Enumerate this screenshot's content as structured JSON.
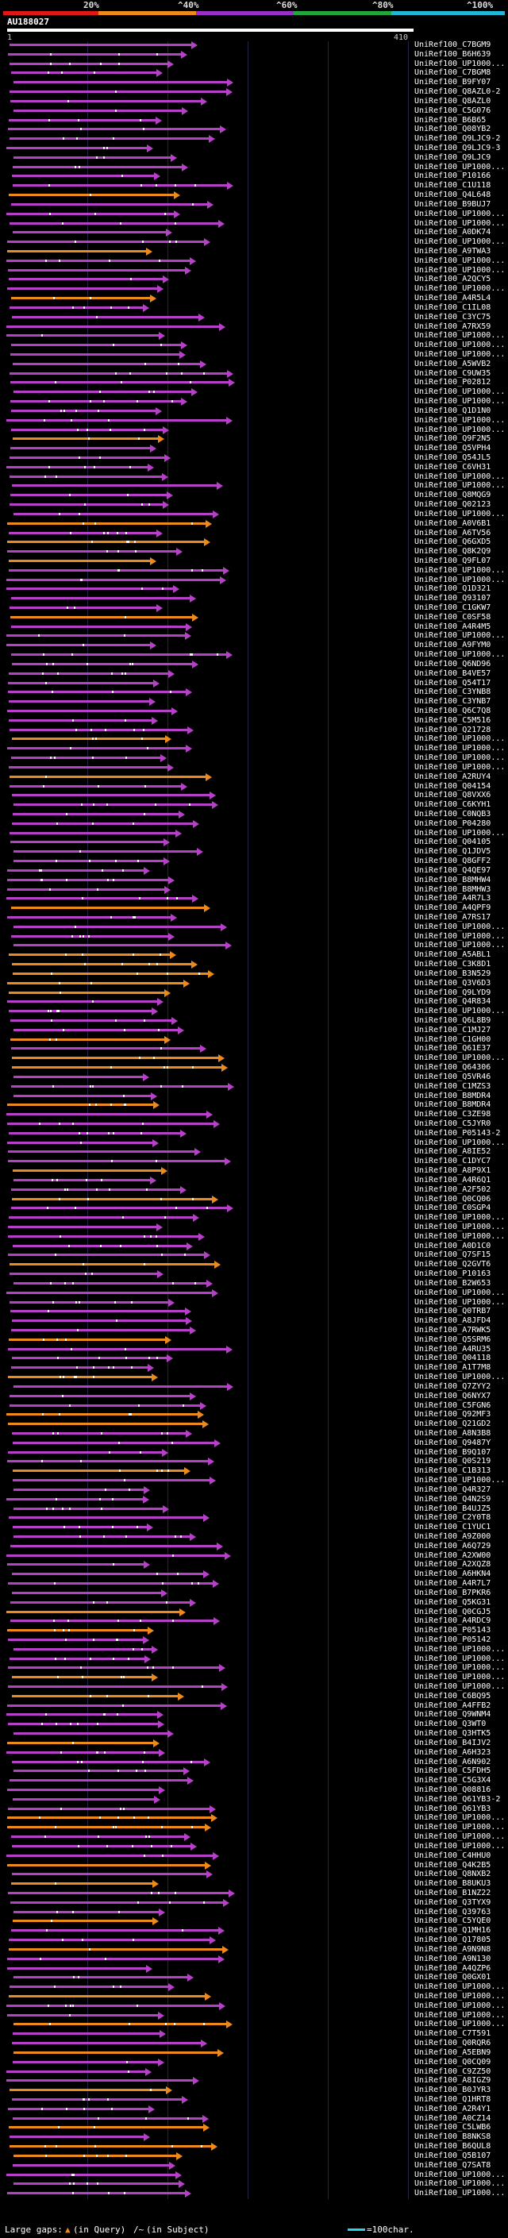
{
  "query": {
    "title": "AU188027",
    "start": "1",
    "end": "410"
  },
  "scale": {
    "labels": [
      "20%",
      "^40%",
      "^60%",
      "^80%",
      "^100%"
    ],
    "colors": [
      "#e01818",
      "#ee8a1c",
      "#9b2fc9",
      "#21a83a",
      "#21b8d8"
    ]
  },
  "legend": {
    "large_gaps": "Large gaps:",
    "in_query": "(in Query)",
    "in_subject": "(in Subject)",
    "scale_text": "=100char."
  },
  "hits": [
    {
      "label": "UniRef100_C7BGM9",
      "color": "purple"
    },
    {
      "label": "UniRef100_B6H639",
      "color": "purple"
    },
    {
      "label": "UniRef100_UP1000...",
      "color": "purple"
    },
    {
      "label": "UniRef100_C7BGM8",
      "color": "purple"
    },
    {
      "label": "UniRef100_B9FY07",
      "color": "purple"
    },
    {
      "label": "UniRef100_Q8AZL0-2",
      "color": "purple"
    },
    {
      "label": "UniRef100_Q8AZL0",
      "color": "purple"
    },
    {
      "label": "UniRef100_C5G076",
      "color": "purple"
    },
    {
      "label": "UniRef100_B6B65",
      "color": "purple"
    },
    {
      "label": "UniRef100_Q08YB2",
      "color": "purple"
    },
    {
      "label": "UniRef100_Q9LJC9-2",
      "color": "purple"
    },
    {
      "label": "UniRef100_Q9LJC9-3",
      "color": "purple"
    },
    {
      "label": "UniRef100_Q9LJC9",
      "color": "purple"
    },
    {
      "label": "UniRef100_UP1000...",
      "color": "purple"
    },
    {
      "label": "UniRef100_P10166",
      "color": "purple"
    },
    {
      "label": "UniRef100_C1U118",
      "color": "purple"
    },
    {
      "label": "UniRef100_Q4L648",
      "color": "orange"
    },
    {
      "label": "UniRef100_B9BUJ7",
      "color": "purple"
    },
    {
      "label": "UniRef100_UP1000...",
      "color": "purple"
    },
    {
      "label": "UniRef100_UP1000...",
      "color": "purple"
    },
    {
      "label": "UniRef100_A0DK74",
      "color": "purple"
    },
    {
      "label": "UniRef100_UP1000...",
      "color": "purple"
    },
    {
      "label": "UniRef100_A9TWA3",
      "color": "orange"
    },
    {
      "label": "UniRef100_UP1000...",
      "color": "purple"
    },
    {
      "label": "UniRef100_UP1000...",
      "color": "purple"
    },
    {
      "label": "UniRef100_A2QCY5",
      "color": "purple"
    },
    {
      "label": "UniRef100_UP1000...",
      "color": "purple"
    },
    {
      "label": "UniRef100_A4R5L4",
      "color": "orange"
    },
    {
      "label": "UniRef100_C1IL08",
      "color": "purple"
    },
    {
      "label": "UniRef100_C3YC75",
      "color": "purple"
    },
    {
      "label": "UniRef100_A7RX59",
      "color": "purple"
    },
    {
      "label": "UniRef100_UP1000...",
      "color": "purple"
    },
    {
      "label": "UniRef100_UP1000...",
      "color": "purple"
    },
    {
      "label": "UniRef100_UP1000...",
      "color": "purple"
    },
    {
      "label": "UniRef100_A5WVB2",
      "color": "purple"
    },
    {
      "label": "UniRef100_C9UW35",
      "color": "purple"
    },
    {
      "label": "UniRef100_P02812",
      "color": "purple"
    },
    {
      "label": "UniRef100_UP1000...",
      "color": "purple"
    },
    {
      "label": "UniRef100_UP1000...",
      "color": "purple"
    },
    {
      "label": "UniRef100_Q1D1N0",
      "color": "purple"
    },
    {
      "label": "UniRef100_UP1000...",
      "color": "purple"
    },
    {
      "label": "UniRef100_UP1000...",
      "color": "purple"
    },
    {
      "label": "UniRef100_Q9F2N5",
      "color": "orange"
    },
    {
      "label": "UniRef100_Q5VPH4",
      "color": "purple"
    },
    {
      "label": "UniRef100_Q54JL5",
      "color": "purple"
    },
    {
      "label": "UniRef100_C6VH31",
      "color": "purple"
    },
    {
      "label": "UniRef100_UP1000...",
      "color": "purple"
    },
    {
      "label": "UniRef100_UP1000...",
      "color": "purple"
    },
    {
      "label": "UniRef100_Q8MQG9",
      "color": "purple"
    },
    {
      "label": "UniRef100_Q02123",
      "color": "purple"
    },
    {
      "label": "UniRef100_UP1000...",
      "color": "purple"
    },
    {
      "label": "UniRef100_A0V6B1",
      "color": "orange"
    },
    {
      "label": "UniRef100_A6TV56",
      "color": "purple"
    },
    {
      "label": "UniRef100_Q6GXD5",
      "color": "orange"
    },
    {
      "label": "UniRef100_Q8K2Q9",
      "color": "purple"
    },
    {
      "label": "UniRef100_Q9FL07",
      "color": "orange"
    },
    {
      "label": "UniRef100_UP1000...",
      "color": "purple"
    },
    {
      "label": "UniRef100_UP1000...",
      "color": "purple"
    },
    {
      "label": "UniRef100_Q1D321",
      "color": "purple"
    },
    {
      "label": "UniRef100_Q93107",
      "color": "purple"
    },
    {
      "label": "UniRef100_C1GKW7",
      "color": "purple"
    },
    {
      "label": "UniRef100_C0SF58",
      "color": "orange"
    },
    {
      "label": "UniRef100_A4R4M5",
      "color": "purple"
    },
    {
      "label": "UniRef100_UP1000...",
      "color": "purple"
    },
    {
      "label": "UniRef100_A9FYM0",
      "color": "purple"
    },
    {
      "label": "UniRef100_UP1000...",
      "color": "purple"
    },
    {
      "label": "UniRef100_Q6ND96",
      "color": "purple"
    },
    {
      "label": "UniRef100_B4VE57",
      "color": "purple"
    },
    {
      "label": "UniRef100_Q54T17",
      "color": "purple"
    },
    {
      "label": "UniRef100_C3YNB8",
      "color": "purple"
    },
    {
      "label": "UniRef100_C3YNB7",
      "color": "purple"
    },
    {
      "label": "UniRef100_Q6C7Q8",
      "color": "purple"
    },
    {
      "label": "UniRef100_C5M516",
      "color": "purple"
    },
    {
      "label": "UniRef100_Q21728",
      "color": "purple"
    },
    {
      "label": "UniRef100_UP1000...",
      "color": "orange"
    },
    {
      "label": "UniRef100_UP1000...",
      "color": "purple"
    },
    {
      "label": "UniRef100_UP1000...",
      "color": "purple"
    },
    {
      "label": "UniRef100_UP1000...",
      "color": "purple"
    },
    {
      "label": "UniRef100_A2RUY4",
      "color": "orange"
    },
    {
      "label": "UniRef100_Q04154",
      "color": "purple"
    },
    {
      "label": "UniRef100_Q8VXX6",
      "color": "purple"
    },
    {
      "label": "UniRef100_C6KYH1",
      "color": "purple"
    },
    {
      "label": "UniRef100_C0NQB3",
      "color": "purple"
    },
    {
      "label": "UniRef100_P04280",
      "color": "purple"
    },
    {
      "label": "UniRef100_UP1000...",
      "color": "purple"
    },
    {
      "label": "UniRef100_Q04105",
      "color": "purple"
    },
    {
      "label": "UniRef100_Q1JDV5",
      "color": "purple"
    },
    {
      "label": "UniRef100_Q8GFF2",
      "color": "purple"
    },
    {
      "label": "UniRef100_Q4QE97",
      "color": "purple"
    },
    {
      "label": "UniRef100_B8MHW4",
      "color": "purple"
    },
    {
      "label": "UniRef100_B8MHW3",
      "color": "purple"
    },
    {
      "label": "UniRef100_A4R7L3",
      "color": "purple"
    },
    {
      "label": "UniRef100_A4QPF9",
      "color": "orange"
    },
    {
      "label": "UniRef100_A7RS17",
      "color": "purple"
    },
    {
      "label": "UniRef100_UP1000...",
      "color": "purple"
    },
    {
      "label": "UniRef100_UP1000...",
      "color": "purple"
    },
    {
      "label": "UniRef100_UP1000...",
      "color": "purple"
    },
    {
      "label": "UniRef100_A5ABL1",
      "color": "orange"
    },
    {
      "label": "UniRef100_C3K8D1",
      "color": "orange"
    },
    {
      "label": "UniRef100_B3N529",
      "color": "orange"
    },
    {
      "label": "UniRef100_Q3V6D3",
      "color": "orange"
    },
    {
      "label": "UniRef100_Q9LYD9",
      "color": "orange"
    },
    {
      "label": "UniRef100_Q4R834",
      "color": "purple"
    },
    {
      "label": "UniRef100_UP1000...",
      "color": "purple"
    },
    {
      "label": "UniRef100_Q6L8B9",
      "color": "purple"
    },
    {
      "label": "UniRef100_C1MJ27",
      "color": "purple"
    },
    {
      "label": "UniRef100_C1GH00",
      "color": "orange"
    },
    {
      "label": "UniRef100_Q61E37",
      "color": "purple"
    },
    {
      "label": "UniRef100_UP1000...",
      "color": "orange"
    },
    {
      "label": "UniRef100_Q64306",
      "color": "orange"
    },
    {
      "label": "UniRef100_Q5VR46",
      "color": "purple"
    },
    {
      "label": "UniRef100_C1MZS3",
      "color": "purple"
    },
    {
      "label": "UniRef100_B8MDR4",
      "color": "purple"
    },
    {
      "label": "UniRef100_B8MDR4",
      "color": "orange"
    },
    {
      "label": "UniRef100_C3ZE98",
      "color": "purple"
    },
    {
      "label": "UniRef100_C5JYR0",
      "color": "purple"
    },
    {
      "label": "UniRef100_P05143-2",
      "color": "purple"
    },
    {
      "label": "UniRef100_UP1000...",
      "color": "purple"
    },
    {
      "label": "UniRef100_A8IE52",
      "color": "purple"
    },
    {
      "label": "UniRef100_C1DYC7",
      "color": "purple"
    },
    {
      "label": "UniRef100_A8P9X1",
      "color": "orange"
    },
    {
      "label": "UniRef100_A4R6Q1",
      "color": "purple"
    },
    {
      "label": "UniRef100_A2F502",
      "color": "purple"
    },
    {
      "label": "UniRef100_Q0CQ06",
      "color": "orange"
    },
    {
      "label": "UniRef100_C0SGP4",
      "color": "purple"
    },
    {
      "label": "UniRef100_UP1000...",
      "color": "purple"
    },
    {
      "label": "UniRef100_UP1000...",
      "color": "purple"
    },
    {
      "label": "UniRef100_UP1000...",
      "color": "purple"
    },
    {
      "label": "UniRef100_A0D1C0",
      "color": "purple"
    },
    {
      "label": "UniRef100_Q7SF15",
      "color": "purple"
    },
    {
      "label": "UniRef100_Q2GVT6",
      "color": "orange"
    },
    {
      "label": "UniRef100_P10163",
      "color": "purple"
    },
    {
      "label": "UniRef100_B2W653",
      "color": "purple"
    },
    {
      "label": "UniRef100_UP1000...",
      "color": "purple"
    },
    {
      "label": "UniRef100_UP1000...",
      "color": "purple"
    },
    {
      "label": "UniRef100_Q0TRB7",
      "color": "purple"
    },
    {
      "label": "UniRef100_A8JFD4",
      "color": "purple"
    },
    {
      "label": "UniRef100_A7RWK5",
      "color": "purple"
    },
    {
      "label": "UniRef100_Q5SRM6",
      "color": "orange"
    },
    {
      "label": "UniRef100_A4RU35",
      "color": "purple"
    },
    {
      "label": "UniRef100_Q04118",
      "color": "purple"
    },
    {
      "label": "UniRef100_A1T7M8",
      "color": "purple"
    },
    {
      "label": "UniRef100_UP1000...",
      "color": "orange"
    },
    {
      "label": "UniRef100_Q7ZYY2",
      "color": "purple"
    },
    {
      "label": "UniRef100_Q6NYX7",
      "color": "purple"
    },
    {
      "label": "UniRef100_C5FGN6",
      "color": "purple"
    },
    {
      "label": "UniRef100_Q92MF3",
      "color": "orange"
    },
    {
      "label": "UniRef100_Q21GD2",
      "color": "orange"
    },
    {
      "label": "UniRef100_A8N3B8",
      "color": "purple"
    },
    {
      "label": "UniRef100_Q9487Y",
      "color": "purple"
    },
    {
      "label": "UniRef100_B9Q107",
      "color": "purple"
    },
    {
      "label": "UniRef100_Q0S219",
      "color": "purple"
    },
    {
      "label": "UniRef100_C1B313",
      "color": "orange"
    },
    {
      "label": "UniRef100_UP1000...",
      "color": "purple"
    },
    {
      "label": "UniRef100_Q4R327",
      "color": "purple"
    },
    {
      "label": "UniRef100_Q4N2S9",
      "color": "purple"
    },
    {
      "label": "UniRef100_B4UJZ5",
      "color": "purple"
    },
    {
      "label": "UniRef100_C2Y0T8",
      "color": "purple"
    },
    {
      "label": "UniRef100_C1YUC1",
      "color": "purple"
    },
    {
      "label": "UniRef100_A9Z000",
      "color": "purple"
    },
    {
      "label": "UniRef100_A6Q729",
      "color": "purple"
    },
    {
      "label": "UniRef100_A2XW00",
      "color": "purple"
    },
    {
      "label": "UniRef100_A2XQZ8",
      "color": "purple"
    },
    {
      "label": "UniRef100_A6HKN4",
      "color": "purple"
    },
    {
      "label": "UniRef100_A4R7L7",
      "color": "purple"
    },
    {
      "label": "UniRef100_B7PKR6",
      "color": "purple"
    },
    {
      "label": "UniRef100_Q5KG31",
      "color": "purple"
    },
    {
      "label": "UniRef100_Q0CGJ5",
      "color": "orange"
    },
    {
      "label": "UniRef100_A4RDC9",
      "color": "purple"
    },
    {
      "label": "UniRef100_P05143",
      "color": "orange"
    },
    {
      "label": "UniRef100_P05142",
      "color": "purple"
    },
    {
      "label": "UniRef100_UP1000...",
      "color": "purple"
    },
    {
      "label": "UniRef100_UP1000...",
      "color": "purple"
    },
    {
      "label": "UniRef100_UP1000...",
      "color": "purple"
    },
    {
      "label": "UniRef100_UP1000...",
      "color": "orange"
    },
    {
      "label": "UniRef100_UP1000...",
      "color": "purple"
    },
    {
      "label": "UniRef100_C6BQ95",
      "color": "orange"
    },
    {
      "label": "UniRef100_A4FFB2",
      "color": "purple"
    },
    {
      "label": "UniRef100_Q9WNM4",
      "color": "purple"
    },
    {
      "label": "UniRef100_Q3WT0",
      "color": "purple"
    },
    {
      "label": "UniRef100_Q3HTK5",
      "color": "purple"
    },
    {
      "label": "UniRef100_B4IJV2",
      "color": "orange"
    },
    {
      "label": "UniRef100_A6H323",
      "color": "purple"
    },
    {
      "label": "UniRef100_A6N902",
      "color": "purple"
    },
    {
      "label": "UniRef100_C5FDH5",
      "color": "purple"
    },
    {
      "label": "UniRef100_C5G3X4",
      "color": "purple"
    },
    {
      "label": "UniRef100_Q08816",
      "color": "purple"
    },
    {
      "label": "UniRef100_Q61YB3-2",
      "color": "purple"
    },
    {
      "label": "UniRef100_Q61YB3",
      "color": "purple"
    },
    {
      "label": "UniRef100_UP1000...",
      "color": "orange"
    },
    {
      "label": "UniRef100_UP1000...",
      "color": "orange"
    },
    {
      "label": "UniRef100_UP1000...",
      "color": "purple"
    },
    {
      "label": "UniRef100_UP1000...",
      "color": "purple"
    },
    {
      "label": "UniRef100_C4HHU0",
      "color": "purple"
    },
    {
      "label": "UniRef100_Q4K2B5",
      "color": "orange"
    },
    {
      "label": "UniRef100_Q8NXB2",
      "color": "purple"
    },
    {
      "label": "UniRef100_B8UKU3",
      "color": "orange"
    },
    {
      "label": "UniRef100_B1NZ22",
      "color": "purple"
    },
    {
      "label": "UniRef100_Q3TYX9",
      "color": "purple"
    },
    {
      "label": "UniRef100_Q39763",
      "color": "purple"
    },
    {
      "label": "UniRef100_C5YQE0",
      "color": "orange"
    },
    {
      "label": "UniRef100_Q1MH16",
      "color": "purple"
    },
    {
      "label": "UniRef100_Q17805",
      "color": "purple"
    },
    {
      "label": "UniRef100_A9N9N8",
      "color": "orange"
    },
    {
      "label": "UniRef100_A9N130",
      "color": "purple"
    },
    {
      "label": "UniRef100_A4QZP6",
      "color": "purple"
    },
    {
      "label": "UniRef100_Q0GX01",
      "color": "purple"
    },
    {
      "label": "UniRef100_UP1000...",
      "color": "purple"
    },
    {
      "label": "UniRef100_UP1000...",
      "color": "orange"
    },
    {
      "label": "UniRef100_UP1000...",
      "color": "purple"
    },
    {
      "label": "UniRef100_UP1000...",
      "color": "purple"
    },
    {
      "label": "UniRef100_UP1000...",
      "color": "orange"
    },
    {
      "label": "UniRef100_C7T591",
      "color": "purple"
    },
    {
      "label": "UniRef100_Q0RQR6",
      "color": "purple"
    },
    {
      "label": "UniRef100_A5EBN9",
      "color": "orange"
    },
    {
      "label": "UniRef100_Q0CQ09",
      "color": "purple"
    },
    {
      "label": "UniRef100_C9ZZ50",
      "color": "purple"
    },
    {
      "label": "UniRef100_A8IGZ9",
      "color": "purple"
    },
    {
      "label": "UniRef100_B0JYR3",
      "color": "orange"
    },
    {
      "label": "UniRef100_Q1HRT8",
      "color": "purple"
    },
    {
      "label": "UniRef100_A2R4Y1",
      "color": "purple"
    },
    {
      "label": "UniRef100_A0CZ14",
      "color": "purple"
    },
    {
      "label": "UniRef100_C5LWB6",
      "color": "orange"
    },
    {
      "label": "UniRef100_B8NKS8",
      "color": "purple"
    },
    {
      "label": "UniRef100_B6QUL8",
      "color": "orange"
    },
    {
      "label": "UniRef100_Q5B107",
      "color": "orange"
    },
    {
      "label": "UniRef100_Q7SAT8",
      "color": "purple"
    },
    {
      "label": "UniRef100_UP1000...",
      "color": "purple"
    },
    {
      "label": "UniRef100_UP1000...",
      "color": "purple"
    },
    {
      "label": "UniRef100_UP1000...",
      "color": "purple"
    }
  ]
}
